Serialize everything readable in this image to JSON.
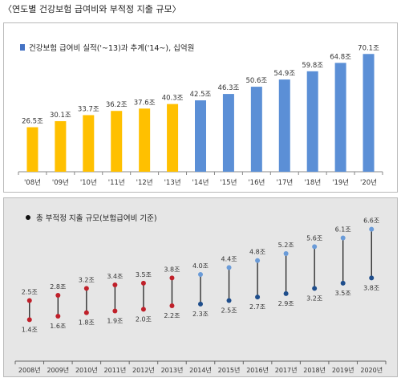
{
  "page_title": "〈연도별 건강보험 급여비와 부적정 지출 규모〉",
  "chart_data": [
    {
      "type": "bar",
      "legend": "건강보험 급여비 실적('~13)과 추계('14~), 십억원",
      "legend_placement": "top-left",
      "categories": [
        "'08년",
        "'09년",
        "'10년",
        "'11년",
        "'12년",
        "'13년",
        "'14년",
        "'15년",
        "'16년",
        "'17년",
        "'18년",
        "'19년",
        "'20년"
      ],
      "values": [
        26.5,
        30.1,
        33.7,
        36.2,
        37.6,
        40.3,
        42.5,
        46.3,
        50.6,
        54.9,
        59.8,
        64.8,
        70.1
      ],
      "value_labels": [
        "26.5조",
        "30.1조",
        "33.7조",
        "36.2조",
        "37.6조",
        "40.3조",
        "42.5조",
        "46.3조",
        "50.6조",
        "54.9조",
        "59.8조",
        "64.8조",
        "70.1조"
      ],
      "colors": [
        "#ffc000",
        "#ffc000",
        "#ffc000",
        "#ffc000",
        "#ffc000",
        "#ffc000",
        "#5b8fd6",
        "#5b8fd6",
        "#5b8fd6",
        "#5b8fd6",
        "#5b8fd6",
        "#5b8fd6",
        "#5b8fd6"
      ],
      "ylim": [
        0,
        75
      ],
      "grid": false
    },
    {
      "type": "range",
      "legend": "총 부적정 지출 규모(보험급여비 기준)",
      "legend_placement": "top-left",
      "categories": [
        "2008년",
        "2009년",
        "2010년",
        "2011년",
        "2012년",
        "2013년",
        "2014년",
        "2015년",
        "2016년",
        "2017년",
        "2018년",
        "2019년",
        "2020년"
      ],
      "low": [
        1.4,
        1.6,
        1.8,
        1.9,
        2.0,
        2.2,
        2.3,
        2.5,
        2.7,
        2.9,
        3.2,
        3.5,
        3.8
      ],
      "high": [
        2.5,
        2.8,
        3.2,
        3.4,
        3.5,
        3.8,
        4.0,
        4.4,
        4.8,
        5.2,
        5.6,
        6.1,
        6.6
      ],
      "low_labels": [
        "1.4조",
        "1.6조",
        "1.8조",
        "1.9조",
        "2.0조",
        "2.2조",
        "2.3조",
        "2.5조",
        "2.7조",
        "2.9조",
        "3.2조",
        "3.5조",
        "3.8조"
      ],
      "high_labels": [
        "2.5조",
        "2.8조",
        "3.2조",
        "3.4조",
        "3.5조",
        "3.8조",
        "4.0조",
        "4.4조",
        "4.8조",
        "5.2조",
        "5.6조",
        "6.1조",
        "6.6조"
      ],
      "colors": {
        "actual_dot": "#c0202a",
        "forecast_low": "#1f4e8c",
        "forecast_high": "#6a9bd8",
        "line": "#222222",
        "legend_dot": "#111111"
      },
      "ylim": [
        1.0,
        7.0
      ],
      "grid": false
    }
  ]
}
